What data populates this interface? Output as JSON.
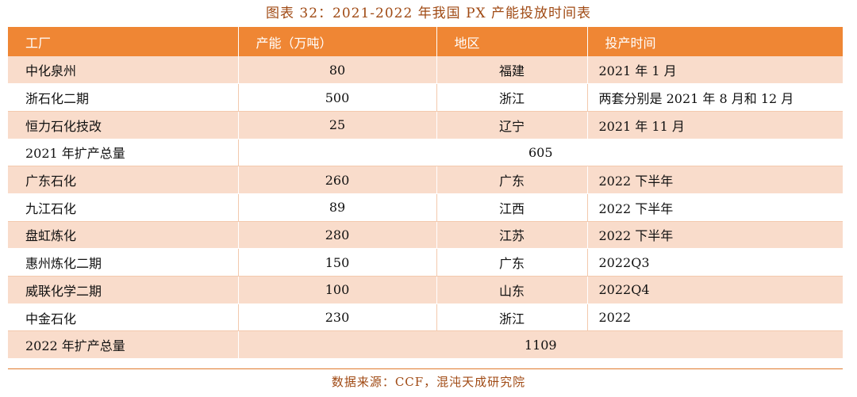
{
  "caption": "图表 32：2021-2022 年我国 PX 产能投放时间表",
  "headers": {
    "factory": "工厂",
    "capacity": "产能（万吨）",
    "region": "地区",
    "time": "投产时间"
  },
  "rows": [
    {
      "factory": "中化泉州",
      "capacity": "80",
      "region": "福建",
      "time": "2021 年 1 月"
    },
    {
      "factory": "浙石化二期",
      "capacity": "500",
      "region": "浙江",
      "time": "两套分别是 2021 年 8 月和 12 月"
    },
    {
      "factory": "恒力石化技改",
      "capacity": "25",
      "region": "辽宁",
      "time": "2021 年 11 月"
    },
    {
      "factory": "广东石化",
      "capacity": "260",
      "region": "广东",
      "time": "2022 下半年"
    },
    {
      "factory": "九江石化",
      "capacity": "89",
      "region": "江西",
      "time": "2022 下半年"
    },
    {
      "factory": "盘虹炼化",
      "capacity": "280",
      "region": "江苏",
      "time": "2022 下半年"
    },
    {
      "factory": "惠州炼化二期",
      "capacity": "150",
      "region": "广东",
      "time": "2022Q3"
    },
    {
      "factory": "威联化学二期",
      "capacity": "100",
      "region": "山东",
      "time": "2022Q4"
    },
    {
      "factory": "中金石化",
      "capacity": "230",
      "region": "浙江",
      "time": "2022"
    }
  ],
  "totals": {
    "y2021": {
      "label": "2021 年扩产总量",
      "value": "605"
    },
    "y2022": {
      "label": "2022 年扩产总量",
      "value": "1109"
    }
  },
  "source": "数据来源：CCF，混沌天成研究院",
  "colors": {
    "header_bg": "#ef8634",
    "band_bg": "#f9dccb",
    "caption_text": "#a04a14"
  }
}
